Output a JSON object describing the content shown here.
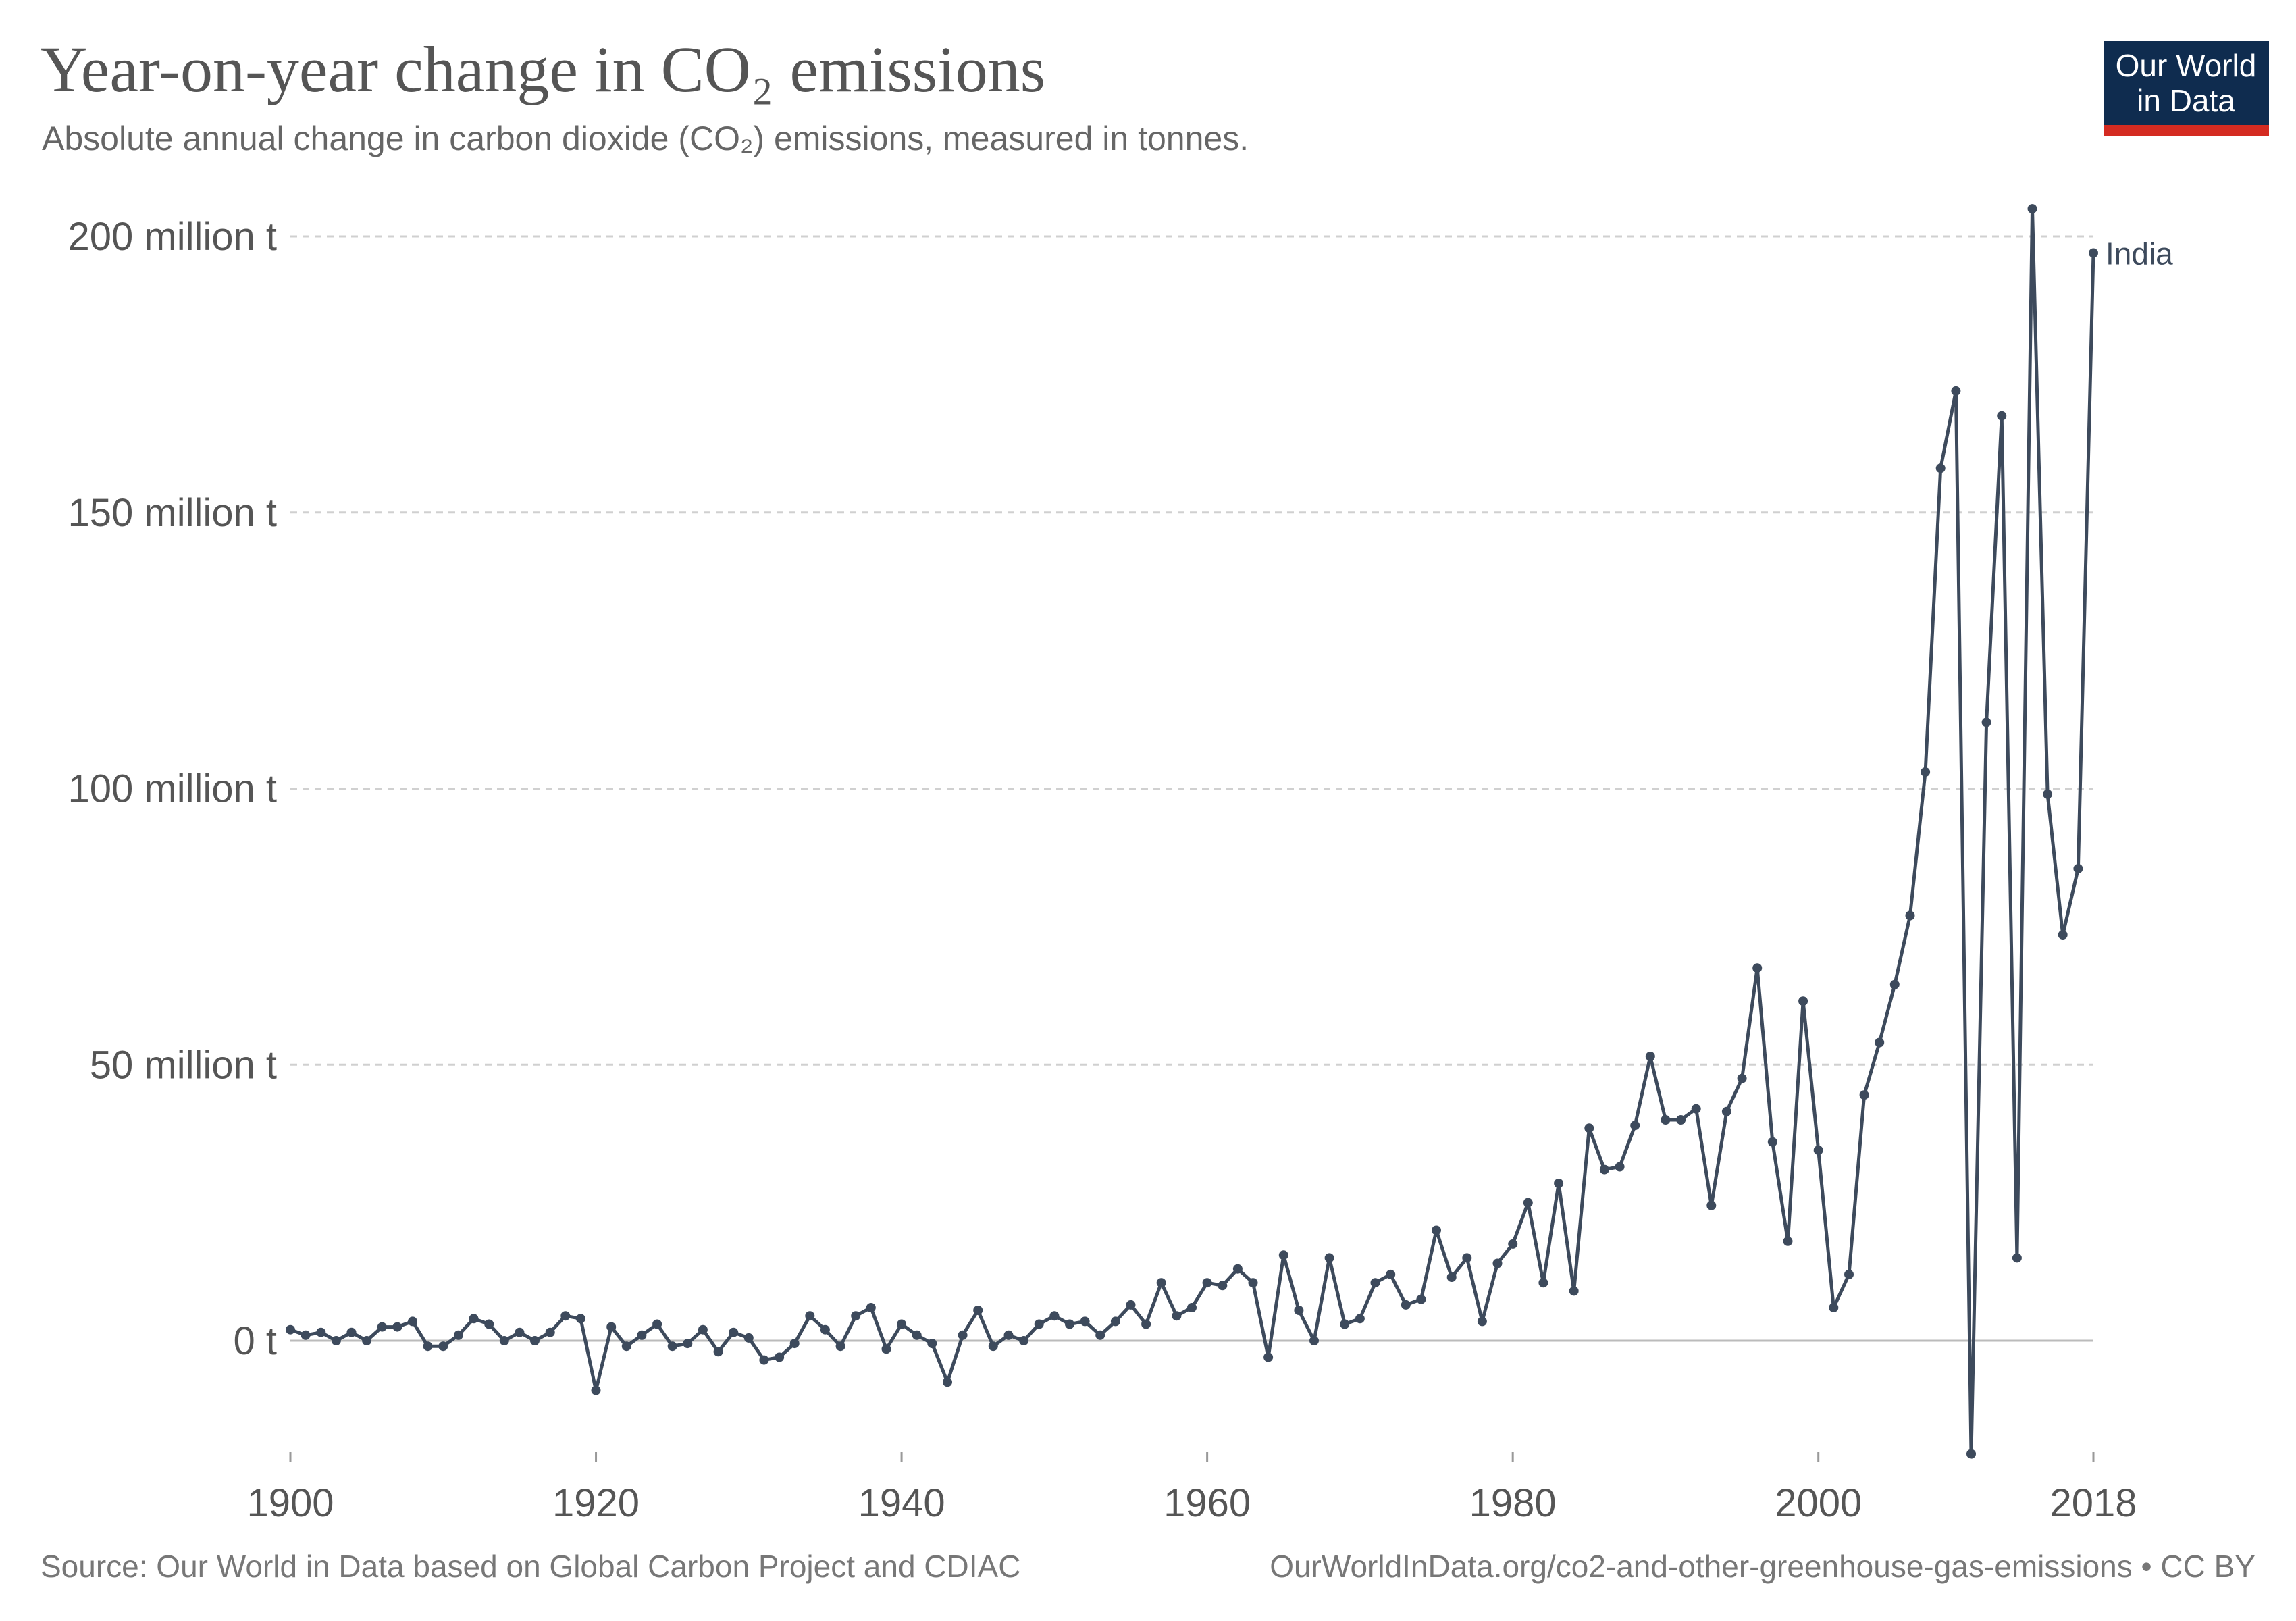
{
  "logo": {
    "line1": "Our World",
    "line2": "in Data",
    "bg_color": "#0f2c4f",
    "stripe_color": "#d42b21"
  },
  "chart_data": {
    "type": "line",
    "title": "Year-on-year change in CO₂ emissions",
    "subtitle": "Absolute annual change in carbon dioxide (CO₂) emissions, measured in tonnes.",
    "xlabel": "",
    "ylabel": "",
    "xlim": [
      1900,
      2018
    ],
    "ylim": [
      -20000000,
      205000000
    ],
    "x_ticks": [
      1900,
      1920,
      1940,
      1960,
      1980,
      2000,
      2018
    ],
    "y_ticks": [
      {
        "value": 0,
        "label": "0 t"
      },
      {
        "value": 50000000,
        "label": "50 million t"
      },
      {
        "value": 100000000,
        "label": "100 million t"
      },
      {
        "value": 150000000,
        "label": "150 million t"
      },
      {
        "value": 200000000,
        "label": "200 million t"
      }
    ],
    "grid": "horizontal dashed",
    "line_color": "#3d4a5c",
    "series": [
      {
        "name": "India",
        "x": [
          1900,
          1901,
          1902,
          1903,
          1904,
          1905,
          1906,
          1907,
          1908,
          1909,
          1910,
          1911,
          1912,
          1913,
          1914,
          1915,
          1916,
          1917,
          1918,
          1919,
          1920,
          1921,
          1922,
          1923,
          1924,
          1925,
          1926,
          1927,
          1928,
          1929,
          1930,
          1931,
          1932,
          1933,
          1934,
          1935,
          1936,
          1937,
          1938,
          1939,
          1940,
          1941,
          1942,
          1943,
          1944,
          1945,
          1946,
          1947,
          1948,
          1949,
          1950,
          1951,
          1952,
          1953,
          1954,
          1955,
          1956,
          1957,
          1958,
          1959,
          1960,
          1961,
          1962,
          1963,
          1964,
          1965,
          1966,
          1967,
          1968,
          1969,
          1970,
          1971,
          1972,
          1973,
          1974,
          1975,
          1976,
          1977,
          1978,
          1979,
          1980,
          1981,
          1982,
          1983,
          1984,
          1985,
          1986,
          1987,
          1988,
          1989,
          1990,
          1991,
          1992,
          1993,
          1994,
          1995,
          1996,
          1997,
          1998,
          1999,
          2000,
          2001,
          2002,
          2003,
          2004,
          2005,
          2006,
          2007,
          2008,
          2009,
          2010,
          2011,
          2012,
          2013,
          2014,
          2015,
          2016,
          2017,
          2018
        ],
        "y": [
          2000000,
          1000000,
          1500000,
          0,
          1500000,
          0,
          2500000,
          2500000,
          3500000,
          -1000000,
          -1000000,
          1000000,
          4000000,
          3000000,
          0,
          1500000,
          0,
          1500000,
          4500000,
          4000000,
          -9000000,
          2500000,
          -1000000,
          1000000,
          3000000,
          -1000000,
          -500000,
          2000000,
          -2000000,
          1500000,
          500000,
          -3500000,
          -3000000,
          -500000,
          4500000,
          2000000,
          -1000000,
          4500000,
          6000000,
          -1500000,
          3000000,
          1000000,
          -500000,
          -7500000,
          1000000,
          5500000,
          -1000000,
          1000000,
          0,
          3000000,
          4500000,
          3000000,
          3500000,
          1000000,
          3500000,
          6500000,
          3000000,
          10500000,
          4500000,
          6000000,
          10500000,
          10000000,
          13000000,
          10500000,
          -3000000,
          15500000,
          5500000,
          0,
          15000000,
          3000000,
          4000000,
          10500000,
          12000000,
          6500000,
          7500000,
          20000000,
          11500000,
          15000000,
          3500000,
          14000000,
          17500000,
          25000000,
          10500000,
          28500000,
          9000000,
          38500000,
          31000000,
          31500000,
          39000000,
          51500000,
          40000000,
          40000000,
          42000000,
          24500000,
          41500000,
          47500000,
          67500000,
          36000000,
          18000000,
          61500000,
          34500000,
          6000000,
          12000000,
          44500000,
          54000000,
          64500000,
          77000000,
          103000000,
          158000000,
          172000000,
          -20500000,
          112000000,
          167500000,
          15000000,
          205000000,
          99000000,
          73500000,
          85500000,
          197000000
        ]
      }
    ]
  },
  "footer": {
    "source": "Source: Our World in Data based on Global Carbon Project and CDIAC",
    "url": "OurWorldInData.org/co2-and-other-greenhouse-gas-emissions • CC BY"
  }
}
